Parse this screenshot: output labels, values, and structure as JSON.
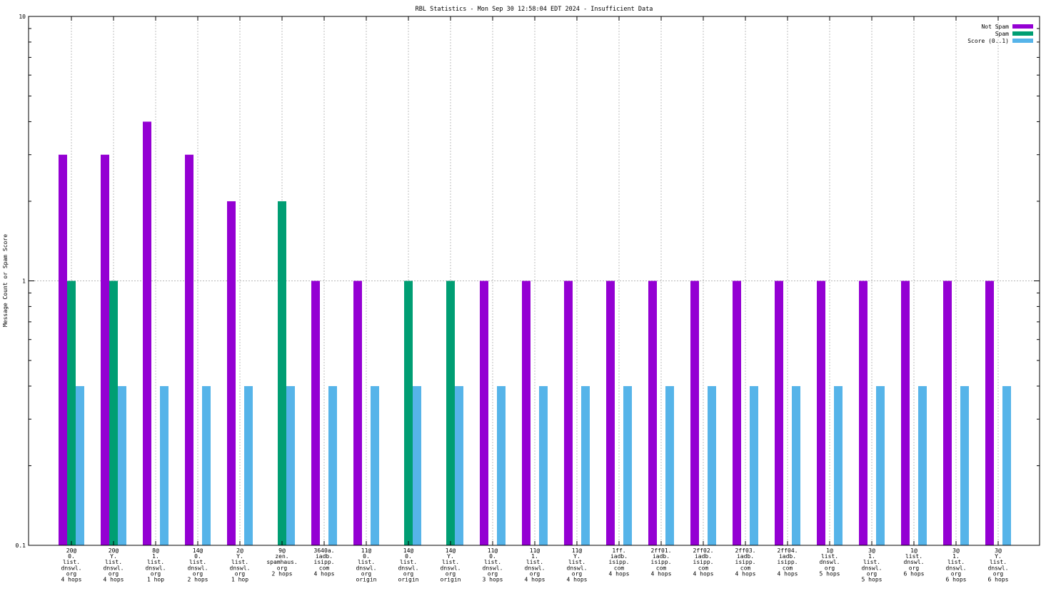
{
  "chart_data": {
    "type": "bar",
    "title": "RBL Statistics - Mon Sep 30 12:58:04 EDT 2024 - Insufficient Data",
    "xlabel": "",
    "ylabel": "Message Count or Spam Score",
    "yscale": "log",
    "ylim": [
      0.1,
      10
    ],
    "yticks": [
      {
        "value": 10,
        "label": "10"
      },
      {
        "value": 1,
        "label": "1"
      },
      {
        "value": 0.1,
        "label": "0.1"
      }
    ],
    "grid": true,
    "legend_position": "top-right",
    "categories": [
      [
        "20@",
        "0.",
        "list.",
        "dnswl.",
        "org",
        "4 hops"
      ],
      [
        "20@",
        "Y.",
        "list.",
        "dnswl.",
        "org",
        "4 hops"
      ],
      [
        "8@",
        "1.",
        "list.",
        "dnswl.",
        "org",
        "1 hop"
      ],
      [
        "14@",
        "0.",
        "list.",
        "dnswl.",
        "org",
        "2 hops"
      ],
      [
        "2@",
        "Y.",
        "list.",
        "dnswl.",
        "org",
        "1 hop"
      ],
      [
        "9@",
        "zen.",
        "spamhaus.",
        "org",
        "2 hops"
      ],
      [
        "3640a.",
        "iadb.",
        "isipp.",
        "com",
        "4 hops"
      ],
      [
        "11@",
        "0.",
        "list.",
        "dnswl.",
        "org",
        "origin"
      ],
      [
        "14@",
        "0.",
        "list.",
        "dnswl.",
        "org",
        "origin"
      ],
      [
        "14@",
        "Y.",
        "list.",
        "dnswl.",
        "org",
        "origin"
      ],
      [
        "11@",
        "0.",
        "list.",
        "dnswl.",
        "org",
        "3 hops"
      ],
      [
        "11@",
        "1.",
        "list.",
        "dnswl.",
        "org",
        "4 hops"
      ],
      [
        "11@",
        "Y.",
        "list.",
        "dnswl.",
        "org",
        "4 hops"
      ],
      [
        "1ff.",
        "iadb.",
        "isipp.",
        "com",
        "4 hops"
      ],
      [
        "2ff01.",
        "iadb.",
        "isipp.",
        "com",
        "4 hops"
      ],
      [
        "2ff02.",
        "iadb.",
        "isipp.",
        "com",
        "4 hops"
      ],
      [
        "2ff03.",
        "iadb.",
        "isipp.",
        "com",
        "4 hops"
      ],
      [
        "2ff04.",
        "iadb.",
        "isipp.",
        "com",
        "4 hops"
      ],
      [
        "1@",
        "list.",
        "dnswl.",
        "org",
        "5 hops"
      ],
      [
        "3@",
        "1.",
        "list.",
        "dnswl.",
        "org",
        "5 hops"
      ],
      [
        "1@",
        "list.",
        "dnswl.",
        "org",
        "6 hops"
      ],
      [
        "3@",
        "1.",
        "list.",
        "dnswl.",
        "org",
        "6 hops"
      ],
      [
        "3@",
        "Y.",
        "list.",
        "dnswl.",
        "org",
        "6 hops"
      ]
    ],
    "series": [
      {
        "name": "Not Spam",
        "color": "#9400d3",
        "values": [
          3,
          3,
          4,
          3,
          2,
          0,
          1,
          1,
          0,
          0,
          1,
          1,
          1,
          1,
          1,
          1,
          1,
          1,
          1,
          1,
          1,
          1,
          1
        ]
      },
      {
        "name": "Spam",
        "color": "#009e73",
        "values": [
          1,
          1,
          0,
          0,
          0,
          2,
          0,
          0,
          1,
          1,
          0,
          0,
          0,
          0,
          0,
          0,
          0,
          0,
          0,
          0,
          0,
          0,
          0
        ]
      },
      {
        "name": "Score (0..1)",
        "color": "#56b4e9",
        "values": [
          0.4,
          0.4,
          0.4,
          0.4,
          0.4,
          0.4,
          0.4,
          0.4,
          0.4,
          0.4,
          0.4,
          0.4,
          0.4,
          0.4,
          0.4,
          0.4,
          0.4,
          0.4,
          0.4,
          0.4,
          0.4,
          0.4,
          0.4
        ]
      }
    ]
  }
}
